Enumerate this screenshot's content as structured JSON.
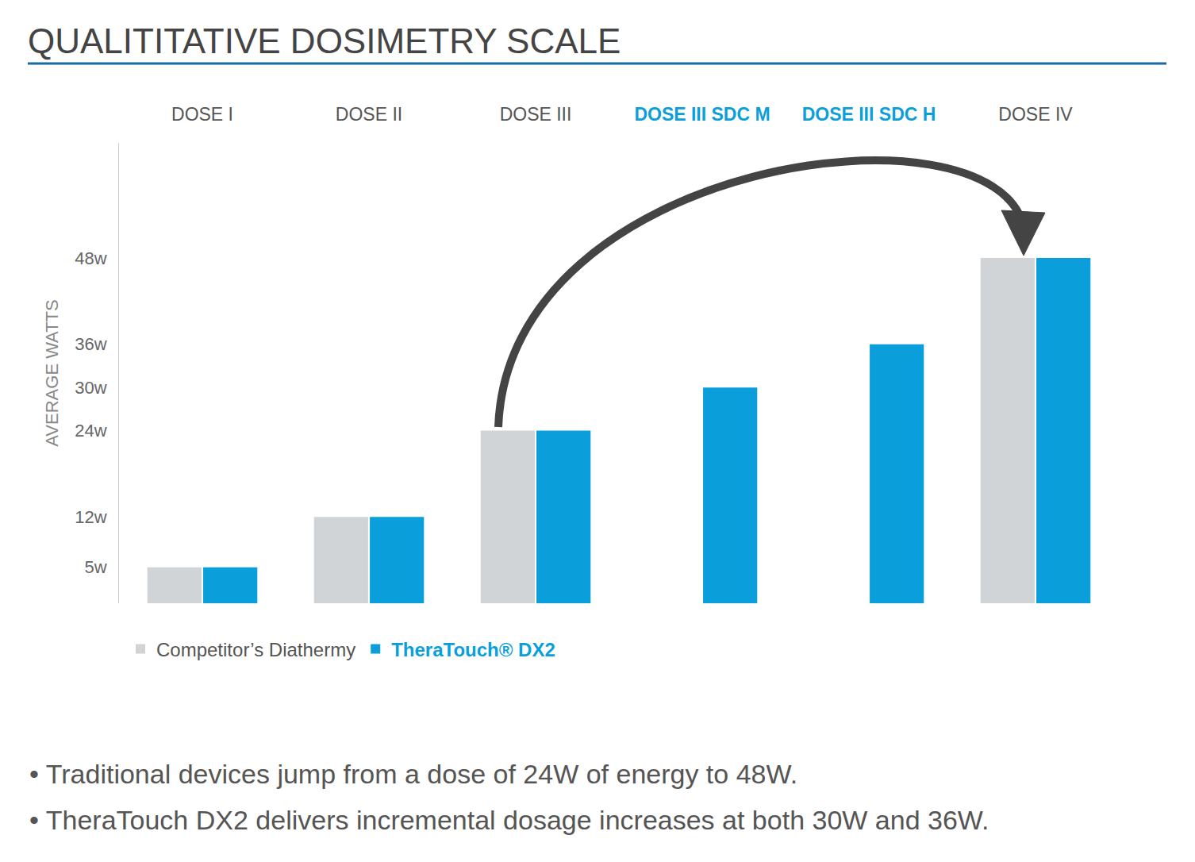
{
  "chart_data": {
    "type": "bar",
    "title": "QUALITITATIVE DOSIMETRY SCALE",
    "y_label": "AVERAGE WATTS",
    "categories": [
      "DOSE I",
      "DOSE II",
      "DOSE III",
      "DOSE III SDC M",
      "DOSE III SDC H",
      "DOSE IV"
    ],
    "series": [
      {
        "name": "Competitor’s Diathermy",
        "color": "#d1d4d6",
        "values": [
          5,
          12,
          24,
          null,
          null,
          48
        ]
      },
      {
        "name": "TheraTouch® DX2",
        "color": "#0a9fdb",
        "values": [
          5,
          12,
          24,
          30,
          36,
          48
        ]
      }
    ],
    "ylim": [
      0,
      64
    ],
    "yticks": [
      {
        "value": 5,
        "label": "5w"
      },
      {
        "value": 12,
        "label": "12w"
      },
      {
        "value": 24,
        "label": "24w"
      },
      {
        "value": 30,
        "label": "30w"
      },
      {
        "value": 36,
        "label": "36w"
      },
      {
        "value": 48,
        "label": "48w"
      }
    ],
    "grid": false,
    "legend": "bottom left",
    "annotations": [
      "• Traditional devices jump from a dose of 24W of energy to 48W.",
      "• TheraTouch DX2 delivers incremental dosage increases at both 30W and 36W."
    ]
  }
}
